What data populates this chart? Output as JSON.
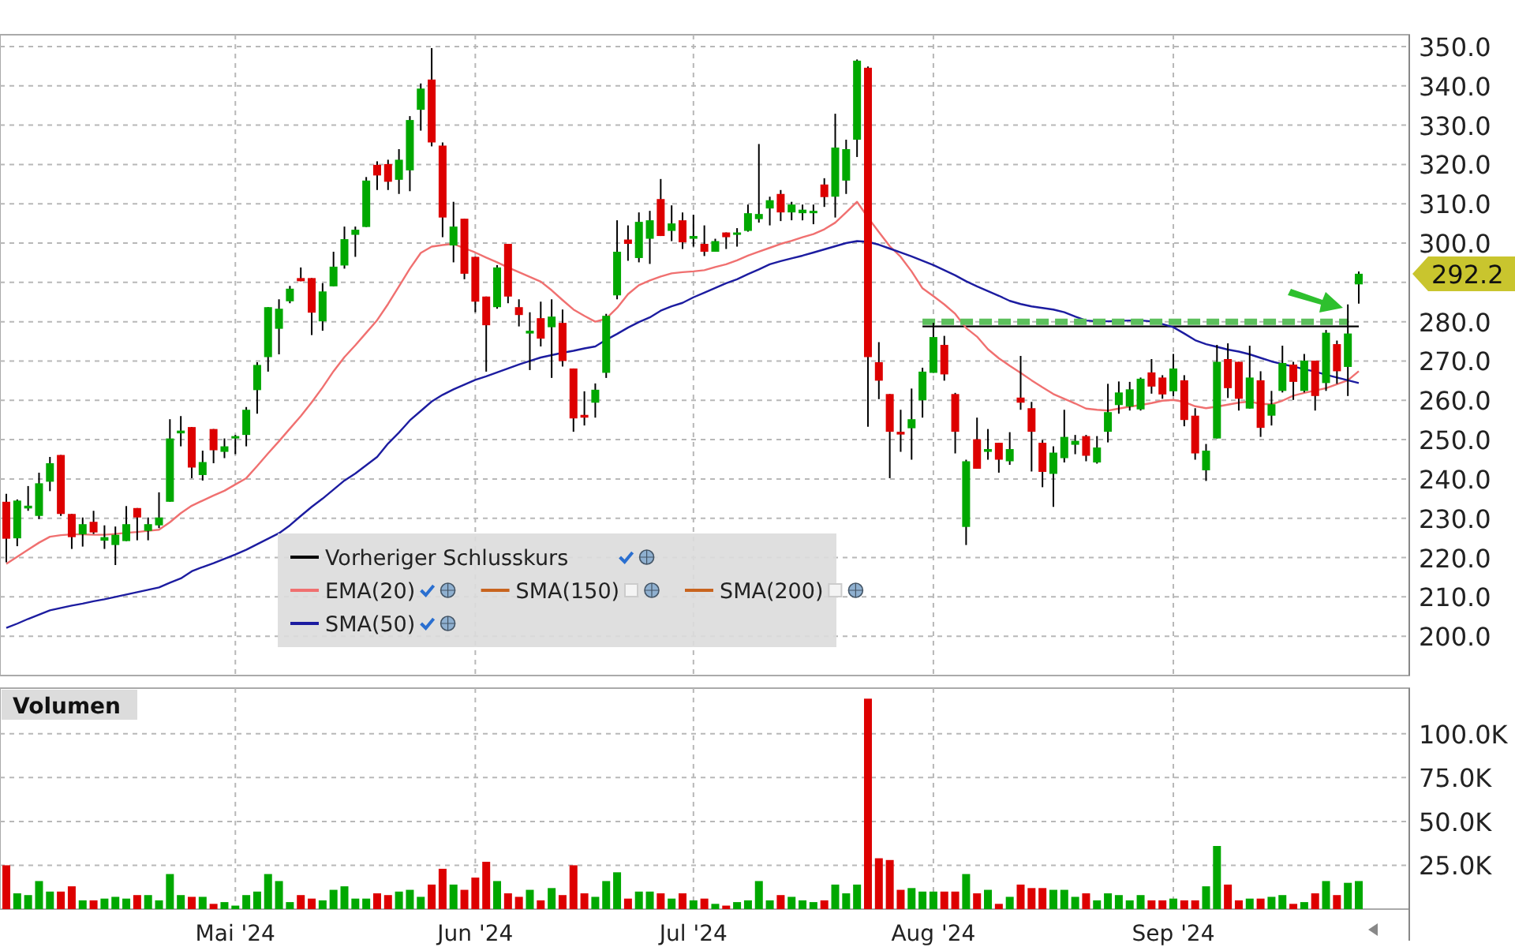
{
  "chart_data": [
    {
      "type": "candlestick",
      "categories": [
        null,
        null,
        null,
        null,
        null,
        null,
        null,
        null,
        null,
        null,
        null,
        null,
        null,
        null,
        null,
        null,
        null,
        null,
        null,
        null,
        null,
        null,
        null,
        null,
        null,
        null,
        null,
        null,
        null,
        null,
        null,
        null,
        null,
        null,
        null,
        null,
        null,
        null,
        null,
        null,
        null,
        null,
        null,
        null,
        null,
        null,
        null,
        null,
        null,
        null,
        null,
        null,
        null,
        null,
        null,
        null,
        null,
        null,
        null,
        null,
        null,
        null,
        null,
        null,
        null,
        null,
        null,
        null,
        null,
        null,
        null,
        null,
        null,
        null,
        null,
        null,
        null,
        null,
        null,
        null,
        null,
        null,
        null,
        null,
        null,
        null,
        null,
        null,
        null,
        null,
        null,
        null,
        null,
        null,
        null,
        null,
        null,
        null,
        null,
        null,
        null,
        null,
        null,
        null,
        null,
        null,
        null,
        null,
        null,
        null,
        null,
        null,
        null,
        null,
        null,
        null,
        null,
        null,
        null,
        null,
        null,
        null,
        null,
        null,
        null
      ],
      "ohlc": [
        [
          234.2,
          236.2,
          218.8,
          224.8
        ],
        [
          224.9,
          234.8,
          222.9,
          234.5
        ],
        [
          232.5,
          238.2,
          231.9,
          233.2
        ],
        [
          230.6,
          241.6,
          229.8,
          238.9
        ],
        [
          239.3,
          245.6,
          236.9,
          244.0
        ],
        [
          246.1,
          246.1,
          230.6,
          231.1
        ],
        [
          231.1,
          231.1,
          222.2,
          225.2
        ],
        [
          225.9,
          230.2,
          222.8,
          228.5
        ],
        [
          229.1,
          231.9,
          226.0,
          226.4
        ],
        [
          224.3,
          228.2,
          222.2,
          225.2
        ],
        [
          223.2,
          227.9,
          218.1,
          225.8
        ],
        [
          224.2,
          233.1,
          224.2,
          228.5
        ],
        [
          232.6,
          232.6,
          224.4,
          230.2
        ],
        [
          226.8,
          230.2,
          224.4,
          228.5
        ],
        [
          228.2,
          236.6,
          227.5,
          230.2
        ],
        [
          234.2,
          255.2,
          234.2,
          250.3
        ],
        [
          251.6,
          256.0,
          248.3,
          252.3
        ],
        [
          253.2,
          253.2,
          240.2,
          242.9
        ],
        [
          241.0,
          247.2,
          239.6,
          244.3
        ],
        [
          252.7,
          252.7,
          244.0,
          247.3
        ],
        [
          246.9,
          250.3,
          245.3,
          248.3
        ],
        [
          250.3,
          251.2,
          246.3,
          250.9
        ],
        [
          251.2,
          258.3,
          248.3,
          257.6
        ],
        [
          262.6,
          269.7,
          256.6,
          269.0
        ],
        [
          271.0,
          283.7,
          267.3,
          283.7
        ],
        [
          278.2,
          285.7,
          271.7,
          283.3
        ],
        [
          285.2,
          289.1,
          284.7,
          288.4
        ],
        [
          291.1,
          293.8,
          290.3,
          290.3
        ],
        [
          291.1,
          291.1,
          276.6,
          282.3
        ],
        [
          280.1,
          289.8,
          277.7,
          287.7
        ],
        [
          289.0,
          297.8,
          289.0,
          294.0
        ],
        [
          294.3,
          304.2,
          293.5,
          301.0
        ],
        [
          302.1,
          304.2,
          296.5,
          303.4
        ],
        [
          304.1,
          316.8,
          304.1,
          315.9
        ],
        [
          319.9,
          320.8,
          313.5,
          317.2
        ],
        [
          320.1,
          321.2,
          313.5,
          315.6
        ],
        [
          316.1,
          323.9,
          312.5,
          321.2
        ],
        [
          318.5,
          332.3,
          313.2,
          331.3
        ],
        [
          333.9,
          340.6,
          328.6,
          339.3
        ],
        [
          341.6,
          349.6,
          324.6,
          325.6
        ],
        [
          324.8,
          325.6,
          301.5,
          306.5
        ],
        [
          299.4,
          310.5,
          295.1,
          304.2
        ],
        [
          306.2,
          306.2,
          290.8,
          292.2
        ],
        [
          296.5,
          296.5,
          282.4,
          285.1
        ],
        [
          286.4,
          286.4,
          267.3,
          279.1
        ],
        [
          283.7,
          294.4,
          283.3,
          293.8
        ],
        [
          299.8,
          299.8,
          284.7,
          286.4
        ],
        [
          283.7,
          285.7,
          278.8,
          281.7
        ],
        [
          277.0,
          282.4,
          267.7,
          277.7
        ],
        [
          280.9,
          285.1,
          273.7,
          275.7
        ],
        [
          278.6,
          285.7,
          265.7,
          281.3
        ],
        [
          279.7,
          283.1,
          268.6,
          270.0
        ],
        [
          268.1,
          268.1,
          252.0,
          255.4
        ],
        [
          256.3,
          262.3,
          253.6,
          255.6
        ],
        [
          259.4,
          264.3,
          255.6,
          262.7
        ],
        [
          267.0,
          282.0,
          265.7,
          281.5
        ],
        [
          286.7,
          305.8,
          285.7,
          297.8
        ],
        [
          300.9,
          304.5,
          295.5,
          299.8
        ],
        [
          296.2,
          307.8,
          295.1,
          305.4
        ],
        [
          301.1,
          308.2,
          294.7,
          305.8
        ],
        [
          311.2,
          316.3,
          301.8,
          301.8
        ],
        [
          303.1,
          309.6,
          300.5,
          305.0
        ],
        [
          305.8,
          307.8,
          298.5,
          300.2
        ],
        [
          301.1,
          307.2,
          299.1,
          301.8
        ],
        [
          299.8,
          304.5,
          296.7,
          297.8
        ],
        [
          297.8,
          301.1,
          297.8,
          300.5
        ],
        [
          302.7,
          302.7,
          298.5,
          301.5
        ],
        [
          302.1,
          303.8,
          299.1,
          302.7
        ],
        [
          303.1,
          309.8,
          302.9,
          307.6
        ],
        [
          306.1,
          325.2,
          305.2,
          307.4
        ],
        [
          308.8,
          311.8,
          304.5,
          310.9
        ],
        [
          312.5,
          313.5,
          305.6,
          307.8
        ],
        [
          307.8,
          310.5,
          305.8,
          309.8
        ],
        [
          307.6,
          309.8,
          305.8,
          308.5
        ],
        [
          307.6,
          309.8,
          304.8,
          308.2
        ],
        [
          314.9,
          316.5,
          309.2,
          311.7
        ],
        [
          311.8,
          332.9,
          306.5,
          324.3
        ],
        [
          315.9,
          326.3,
          312.5,
          323.9
        ],
        [
          326.3,
          346.7,
          321.9,
          346.4
        ],
        [
          344.6,
          344.9,
          253.3,
          271.0
        ],
        [
          269.7,
          274.8,
          260.3,
          265.0
        ],
        [
          261.6,
          261.6,
          240.2,
          252.0
        ],
        [
          252.0,
          257.6,
          246.9,
          251.3
        ],
        [
          252.9,
          263.0,
          244.9,
          255.2
        ],
        [
          260.0,
          268.3,
          255.6,
          267.3
        ],
        [
          267.0,
          279.7,
          267.0,
          276.1
        ],
        [
          274.1,
          276.4,
          265.0,
          266.6
        ],
        [
          261.6,
          261.9,
          246.5,
          252.0
        ],
        [
          227.8,
          244.9,
          223.2,
          244.5
        ],
        [
          250.1,
          255.6,
          242.6,
          242.6
        ],
        [
          246.9,
          252.7,
          244.9,
          247.6
        ],
        [
          249.2,
          249.2,
          241.6,
          244.9
        ],
        [
          244.5,
          251.9,
          243.6,
          247.6
        ],
        [
          260.7,
          271.3,
          257.6,
          259.4
        ],
        [
          258.0,
          259.6,
          241.9,
          252.0
        ],
        [
          249.2,
          249.9,
          237.9,
          241.8
        ],
        [
          241.3,
          248.3,
          232.9,
          246.7
        ],
        [
          245.3,
          257.6,
          244.2,
          250.7
        ],
        [
          248.7,
          251.2,
          246.3,
          249.7
        ],
        [
          250.9,
          251.2,
          244.5,
          245.9
        ],
        [
          244.2,
          250.9,
          243.9,
          248.0
        ],
        [
          252.0,
          264.2,
          249.3,
          257.0
        ],
        [
          258.8,
          264.8,
          256.6,
          262.0
        ],
        [
          258.4,
          264.7,
          257.4,
          262.8
        ],
        [
          257.7,
          265.8,
          257.4,
          265.5
        ],
        [
          267.1,
          270.5,
          261.7,
          263.5
        ],
        [
          265.8,
          266.4,
          260.4,
          261.5
        ],
        [
          262.3,
          271.8,
          261.1,
          268.1
        ],
        [
          265.1,
          266.4,
          253.4,
          255.0
        ],
        [
          256.1,
          258.0,
          244.9,
          246.5
        ],
        [
          242.2,
          248.9,
          239.5,
          247.2
        ],
        [
          250.3,
          274.1,
          250.3,
          269.8
        ],
        [
          270.5,
          274.5,
          260.6,
          263.1
        ],
        [
          269.8,
          269.8,
          257.4,
          260.4
        ],
        [
          257.9,
          273.9,
          257.9,
          265.8
        ],
        [
          265.1,
          267.4,
          250.7,
          253.0
        ],
        [
          256.1,
          262.4,
          253.6,
          259.0
        ],
        [
          262.4,
          273.9,
          262.0,
          269.5
        ],
        [
          269.1,
          269.8,
          260.1,
          264.7
        ],
        [
          262.4,
          271.8,
          262.0,
          270.1
        ],
        [
          270.1,
          270.1,
          257.4,
          261.1
        ],
        [
          264.4,
          277.9,
          262.4,
          277.2
        ],
        [
          274.3,
          275.2,
          264.2,
          267.4
        ],
        [
          268.5,
          284.4,
          261.1,
          277.0
        ],
        [
          289.5,
          292.8,
          284.6,
          292.2
        ]
      ],
      "colors": [
        "#dd0000",
        "#00a800",
        "#00a800",
        "#00a800",
        "#00a800",
        "#dd0000",
        "#dd0000",
        "#00a800",
        "#dd0000",
        "#00a800",
        "#00a800",
        "#00a800",
        "#dd0000",
        "#00a800",
        "#00a800",
        "#00a800",
        "#00a800",
        "#dd0000",
        "#00a800",
        "#dd0000",
        "#00a800",
        "#00a800",
        "#00a800",
        "#00a800",
        "#00a800",
        "#00a800",
        "#00a800",
        "#dd0000",
        "#dd0000",
        "#00a800",
        "#00a800",
        "#00a800",
        "#00a800",
        "#00a800",
        "#dd0000",
        "#dd0000",
        "#00a800",
        "#00a800",
        "#00a800",
        "#dd0000",
        "#dd0000",
        "#00a800",
        "#dd0000",
        "#dd0000",
        "#dd0000",
        "#00a800",
        "#dd0000",
        "#dd0000",
        "#00a800",
        "#dd0000",
        "#00a800",
        "#dd0000",
        "#dd0000",
        "#dd0000",
        "#00a800",
        "#00a800",
        "#00a800",
        "#dd0000",
        "#00a800",
        "#00a800",
        "#dd0000",
        "#00a800",
        "#dd0000",
        "#00a800",
        "#dd0000",
        "#00a800",
        "#dd0000",
        "#00a800",
        "#00a800",
        "#00a800",
        "#00a800",
        "#dd0000",
        "#00a800",
        "#00a800",
        "#00a800",
        "#dd0000",
        "#00a800",
        "#00a800",
        "#00a800",
        "#dd0000",
        "#dd0000",
        "#dd0000",
        "#dd0000",
        "#00a800",
        "#00a800",
        "#00a800",
        "#dd0000",
        "#dd0000",
        "#00a800",
        "#dd0000",
        "#00a800",
        "#dd0000",
        "#00a800",
        "#dd0000",
        "#dd0000",
        "#dd0000",
        "#00a800",
        "#00a800",
        "#00a800",
        "#dd0000",
        "#00a800",
        "#00a800",
        "#00a800",
        "#00a800",
        "#00a800",
        "#dd0000",
        "#dd0000",
        "#00a800",
        "#dd0000",
        "#dd0000",
        "#00a800",
        "#00a800",
        "#dd0000",
        "#dd0000",
        "#00a800",
        "#dd0000",
        "#00a800",
        "#00a800",
        "#dd0000",
        "#00a800",
        "#dd0000",
        "#00a800",
        "#dd0000",
        "#00a800",
        "#00a800"
      ],
      "series": [
        {
          "type": "line",
          "name": "Vorheriger Schlusskurs",
          "color": "#000000",
          "values": [
            null,
            null,
            null,
            null,
            null,
            null,
            null,
            null,
            null,
            null,
            null,
            null,
            null,
            null,
            null,
            null,
            null,
            null,
            null,
            null,
            null,
            null,
            null,
            null,
            null,
            null,
            null,
            null,
            null,
            null,
            null,
            null,
            null,
            null,
            null,
            null,
            null,
            null,
            null,
            null,
            null,
            null,
            null,
            null,
            null,
            null,
            null,
            null,
            null,
            null,
            null,
            null,
            null,
            null,
            null,
            null,
            null,
            null,
            null,
            null,
            null,
            null,
            null,
            null,
            null,
            null,
            null,
            null,
            null,
            null,
            null,
            null,
            null,
            null,
            null,
            null,
            null,
            null,
            null,
            null,
            null,
            null,
            null,
            null,
            278.8,
            278.8,
            278.8,
            278.8,
            278.8,
            278.8,
            278.8,
            278.8,
            278.8,
            278.8,
            278.8,
            278.8,
            278.8,
            278.8,
            278.8,
            278.8,
            278.8,
            278.8,
            278.8,
            278.8,
            278.8,
            278.8,
            278.8,
            278.8,
            278.8,
            278.8,
            278.8,
            278.8,
            278.8,
            278.8,
            278.8,
            278.8,
            278.8,
            278.8,
            278.8,
            278.8,
            278.8,
            278.8,
            278.8,
            278.8,
            278.8
          ]
        },
        {
          "type": "line",
          "name": "EMA(20)",
          "color": "#f07070",
          "values": [
            218.4,
            220.2,
            222,
            223.8,
            225.3,
            225.7,
            225.9,
            225.9,
            225.8,
            225.8,
            226,
            226.3,
            226.5,
            226.8,
            227.1,
            229,
            231.3,
            233.2,
            234.5,
            235.8,
            237,
            238.6,
            240.2,
            243.3,
            246.5,
            249.6,
            252.8,
            256,
            259.5,
            263.3,
            267.4,
            271,
            274,
            277.2,
            280.4,
            284.5,
            289,
            293.5,
            297.5,
            299.1,
            299.5,
            299.8,
            298.7,
            297.6,
            296.3,
            295.1,
            293.8,
            292.6,
            291.4,
            290.2,
            288,
            285.5,
            283.1,
            281.5,
            280.0,
            280.8,
            283.5,
            287,
            289.3,
            290.5,
            291.5,
            292.3,
            292.6,
            292.8,
            293.1,
            293.9,
            294.6,
            295.6,
            296.8,
            297.8,
            298.8,
            299.8,
            300.6,
            301.5,
            302.3,
            303.5,
            305.2,
            307.8,
            310.5,
            306.5,
            302.8,
            299.2,
            296.5,
            292.8,
            288.5,
            286.5,
            284.4,
            282,
            278.4,
            276.2,
            273,
            270.7,
            268.8,
            267,
            265.1,
            263.3,
            261.6,
            260.4,
            259.2,
            257.9,
            257.6,
            257.4,
            257.9,
            258.4,
            258.8,
            259.3,
            259.9,
            260.1,
            259.6,
            258.5,
            258,
            258.4,
            258.9,
            259.4,
            259.7,
            259.1,
            259,
            259.9,
            261.2,
            261.9,
            262.5,
            263.1,
            264.1,
            265.1,
            267.4
          ]
        },
        {
          "type": "line",
          "name": "SMA(150)",
          "color": "#c8641e",
          "values": [
            null,
            null,
            null,
            null,
            null,
            null,
            null,
            null,
            null,
            null,
            null,
            null,
            null,
            null,
            null,
            null,
            null,
            null,
            null,
            null,
            null,
            null,
            null,
            null,
            null,
            null,
            null,
            null,
            null,
            null,
            null,
            null,
            null,
            null,
            null,
            null,
            null,
            null,
            null,
            null,
            null,
            null,
            null,
            null,
            null,
            null,
            null,
            null,
            null,
            null,
            null,
            null,
            null,
            null,
            null,
            null,
            null,
            null,
            null,
            null,
            null,
            null,
            null,
            null,
            null,
            null,
            null,
            null,
            null,
            null,
            null,
            null,
            null,
            null,
            null,
            null,
            null,
            null,
            null,
            null,
            null,
            null,
            null,
            null,
            null,
            null,
            null,
            null,
            null,
            null,
            null,
            null,
            null,
            null,
            null,
            null,
            null,
            null,
            null,
            null,
            null,
            null,
            null,
            null,
            null,
            null,
            null,
            null,
            null,
            null,
            null,
            null,
            null,
            null,
            null,
            null,
            null,
            null,
            null,
            null,
            null,
            null,
            null,
            null,
            null
          ]
        },
        {
          "type": "line",
          "name": "SMA(200)",
          "color": "#c8641e",
          "values": [
            null,
            null,
            null,
            null,
            null,
            null,
            null,
            null,
            null,
            null,
            null,
            null,
            null,
            null,
            null,
            null,
            null,
            null,
            null,
            null,
            null,
            null,
            null,
            null,
            null,
            null,
            null,
            null,
            null,
            null,
            null,
            null,
            null,
            null,
            null,
            null,
            null,
            null,
            null,
            null,
            null,
            null,
            null,
            null,
            null,
            null,
            null,
            null,
            null,
            null,
            null,
            null,
            null,
            null,
            null,
            null,
            null,
            null,
            null,
            null,
            null,
            null,
            null,
            null,
            null,
            null,
            null,
            null,
            null,
            null,
            null,
            null,
            null,
            null,
            null,
            null,
            null,
            null,
            null,
            null,
            null,
            null,
            null,
            null,
            null,
            null,
            null,
            null,
            null,
            null,
            null,
            null,
            null,
            null,
            null,
            null,
            null,
            null,
            null,
            null,
            null,
            null,
            null,
            null,
            null,
            null,
            null,
            null,
            null,
            null,
            null,
            null,
            null,
            null,
            null,
            null,
            null,
            null,
            null,
            null,
            null,
            null,
            null,
            null,
            null
          ]
        },
        {
          "type": "line",
          "name": "SMA(50)",
          "color": "#1c1ca0",
          "values": [
            202.1,
            203.2,
            204.4,
            205.5,
            206.6,
            207.2,
            207.8,
            208.3,
            208.9,
            209.4,
            210,
            210.6,
            211.2,
            211.8,
            212.4,
            213.6,
            214.7,
            216.5,
            217.6,
            218.6,
            219.7,
            220.8,
            222,
            223.4,
            224.8,
            226.2,
            228.2,
            230.6,
            232.9,
            235,
            237.3,
            239.6,
            241.4,
            243.5,
            245.6,
            249,
            251.8,
            254.9,
            257.3,
            259.7,
            261.4,
            262.8,
            264,
            265.2,
            266.1,
            267.1,
            268.1,
            269.1,
            270,
            270.9,
            271.5,
            272.1,
            272.6,
            273.2,
            273.7,
            275.4,
            276.9,
            278.5,
            279.9,
            281.1,
            282.8,
            283.9,
            284.8,
            286.2,
            287.4,
            288.6,
            289.8,
            290.8,
            292.1,
            293.3,
            294.6,
            295.4,
            296.1,
            296.8,
            297.6,
            298.4,
            299.2,
            300,
            300.5,
            300.3,
            299.6,
            298.6,
            297.6,
            296.6,
            295.5,
            294.4,
            293.1,
            291.8,
            290.3,
            289,
            287.8,
            286.6,
            285.3,
            284.5,
            283.9,
            283.5,
            283.1,
            282.4,
            281.3,
            280.3,
            280.1,
            280.1,
            280.2,
            280.3,
            280.3,
            280.1,
            279.4,
            278.6,
            277,
            275.3,
            274.3,
            273.6,
            272.9,
            272.4,
            271.7,
            270.8,
            269.9,
            269.2,
            268.6,
            267.9,
            267.3,
            266.5,
            265.8,
            265.1,
            264.4
          ]
        },
        {
          "type": "line",
          "color": "#5cc05c",
          "line_style": "dashed",
          "values": [
            null,
            null,
            null,
            null,
            null,
            null,
            null,
            null,
            null,
            null,
            null,
            null,
            null,
            null,
            null,
            null,
            null,
            null,
            null,
            null,
            null,
            null,
            null,
            null,
            null,
            null,
            null,
            null,
            null,
            null,
            null,
            null,
            null,
            null,
            null,
            null,
            null,
            null,
            null,
            null,
            null,
            null,
            null,
            null,
            null,
            null,
            null,
            null,
            null,
            null,
            null,
            null,
            null,
            null,
            null,
            null,
            null,
            null,
            null,
            null,
            null,
            null,
            null,
            null,
            null,
            null,
            null,
            null,
            null,
            null,
            null,
            null,
            null,
            null,
            null,
            null,
            null,
            null,
            null,
            null,
            null,
            null,
            null,
            null,
            280,
            280,
            280,
            280,
            280,
            280,
            280,
            280,
            280,
            280,
            280,
            280,
            280,
            280,
            280,
            280,
            280,
            280,
            280,
            280,
            280,
            280,
            280,
            280,
            280,
            280,
            280,
            280,
            280,
            280,
            280,
            280,
            280,
            280,
            280,
            280,
            280,
            280,
            280,
            280,
            null
          ]
        }
      ],
      "ylim": [
        190,
        353
      ],
      "yticks": [
        {
          "value": 200,
          "label": "200.0"
        },
        {
          "value": 210,
          "label": "210.0"
        },
        {
          "value": 220,
          "label": "220.0"
        },
        {
          "value": 230,
          "label": "230.0"
        },
        {
          "value": 240,
          "label": "240.0"
        },
        {
          "value": 250,
          "label": "250.0"
        },
        {
          "value": 260,
          "label": "260.0"
        },
        {
          "value": 270,
          "label": "270.0"
        },
        {
          "value": 280,
          "label": "280.0"
        },
        {
          "value": 290,
          "label": null
        },
        {
          "value": 300,
          "label": "300.0"
        },
        {
          "value": 310,
          "label": "310.0"
        },
        {
          "value": 320,
          "label": "320.0"
        },
        {
          "value": 330,
          "label": "330.0"
        },
        {
          "value": 340,
          "label": "340.0"
        },
        {
          "value": 350,
          "label": "350.0"
        }
      ],
      "grid": true,
      "tick_labels": "y",
      "legend": "bottom left",
      "annotations": [
        "292.2"
      ]
    },
    {
      "type": "bar",
      "title": "Volumen",
      "categories": [
        null,
        null,
        null,
        null,
        null,
        null,
        null,
        null,
        null,
        null,
        null,
        null,
        null,
        null,
        null,
        null,
        null,
        null,
        null,
        null,
        null,
        "Mai '24",
        null,
        null,
        null,
        null,
        null,
        null,
        null,
        null,
        null,
        null,
        null,
        null,
        null,
        null,
        null,
        null,
        null,
        null,
        null,
        null,
        null,
        "Jun '24",
        null,
        null,
        null,
        null,
        null,
        null,
        null,
        null,
        null,
        null,
        null,
        null,
        null,
        null,
        null,
        null,
        null,
        null,
        null,
        "Jul '24",
        null,
        null,
        null,
        null,
        null,
        null,
        null,
        null,
        null,
        null,
        null,
        null,
        null,
        null,
        null,
        null,
        null,
        null,
        null,
        null,
        null,
        "Aug '24",
        null,
        null,
        null,
        null,
        null,
        null,
        null,
        null,
        null,
        null,
        null,
        null,
        null,
        null,
        null,
        null,
        null,
        null,
        null,
        null,
        null,
        "Sep '24",
        null,
        null,
        null,
        null,
        null,
        null,
        null,
        null,
        null,
        null,
        null,
        null,
        null,
        null,
        null,
        null,
        null
      ],
      "values": [
        25000,
        9000,
        8000,
        16000,
        10000,
        10000,
        13000,
        5000,
        5000,
        6000,
        7000,
        6000,
        8000,
        8000,
        5000,
        20000,
        8000,
        7000,
        7000,
        3000,
        4000,
        2000,
        8000,
        10000,
        20000,
        16000,
        4000,
        8000,
        6000,
        5000,
        11000,
        13000,
        6000,
        6000,
        9000,
        8000,
        10000,
        11000,
        7000,
        14000,
        23000,
        14000,
        11000,
        18000,
        27000,
        16000,
        9000,
        7000,
        11000,
        5000,
        12000,
        8000,
        25000,
        9000,
        7000,
        16000,
        21000,
        6000,
        10000,
        10000,
        9000,
        6000,
        9000,
        5000,
        6000,
        3000,
        2000,
        4000,
        5000,
        16000,
        5000,
        8000,
        7000,
        5000,
        4000,
        5000,
        14000,
        9000,
        14000,
        120000,
        29000,
        28000,
        11000,
        12000,
        10000,
        10000,
        10000,
        10000,
        20000,
        9000,
        11000,
        3000,
        7000,
        14000,
        12000,
        12000,
        11000,
        11000,
        7000,
        9000,
        5000,
        9000,
        8000,
        5000,
        8000,
        5000,
        5000,
        6000,
        5000,
        5000,
        13000,
        36000,
        14000,
        5000,
        6000,
        6000,
        7000,
        8000,
        3000,
        4000,
        9000,
        16000,
        8000,
        15000,
        16000
      ],
      "colors": [
        "#dd0000",
        "#00a800",
        "#00a800",
        "#00a800",
        "#00a800",
        "#dd0000",
        "#dd0000",
        "#00a800",
        "#dd0000",
        "#00a800",
        "#00a800",
        "#00a800",
        "#dd0000",
        "#00a800",
        "#00a800",
        "#00a800",
        "#00a800",
        "#dd0000",
        "#00a800",
        "#dd0000",
        "#00a800",
        "#00a800",
        "#00a800",
        "#00a800",
        "#00a800",
        "#00a800",
        "#00a800",
        "#dd0000",
        "#dd0000",
        "#00a800",
        "#00a800",
        "#00a800",
        "#00a800",
        "#00a800",
        "#dd0000",
        "#dd0000",
        "#00a800",
        "#00a800",
        "#00a800",
        "#dd0000",
        "#dd0000",
        "#00a800",
        "#dd0000",
        "#dd0000",
        "#dd0000",
        "#00a800",
        "#dd0000",
        "#dd0000",
        "#00a800",
        "#dd0000",
        "#00a800",
        "#dd0000",
        "#dd0000",
        "#dd0000",
        "#00a800",
        "#00a800",
        "#00a800",
        "#dd0000",
        "#00a800",
        "#00a800",
        "#dd0000",
        "#00a800",
        "#dd0000",
        "#00a800",
        "#dd0000",
        "#00a800",
        "#dd0000",
        "#00a800",
        "#00a800",
        "#00a800",
        "#00a800",
        "#dd0000",
        "#00a800",
        "#00a800",
        "#00a800",
        "#dd0000",
        "#00a800",
        "#00a800",
        "#00a800",
        "#dd0000",
        "#dd0000",
        "#dd0000",
        "#dd0000",
        "#00a800",
        "#00a800",
        "#00a800",
        "#dd0000",
        "#dd0000",
        "#00a800",
        "#dd0000",
        "#00a800",
        "#dd0000",
        "#00a800",
        "#dd0000",
        "#dd0000",
        "#dd0000",
        "#00a800",
        "#00a800",
        "#00a800",
        "#dd0000",
        "#00a800",
        "#00a800",
        "#00a800",
        "#00a800",
        "#00a800",
        "#dd0000",
        "#dd0000",
        "#00a800",
        "#dd0000",
        "#dd0000",
        "#00a800",
        "#00a800",
        "#dd0000",
        "#dd0000",
        "#00a800",
        "#dd0000",
        "#00a800",
        "#00a800",
        "#dd0000",
        "#00a800",
        "#dd0000",
        "#00a800",
        "#dd0000",
        "#00a800",
        "#00a800"
      ],
      "ylim": [
        0,
        126000
      ],
      "yticks": [
        {
          "value": 25000,
          "label": "25.0K"
        },
        {
          "value": 50000,
          "label": "50.0K"
        },
        {
          "value": 75000,
          "label": "75.0K"
        },
        {
          "value": 100000,
          "label": "100.0K"
        }
      ],
      "grid": true
    }
  ]
}
